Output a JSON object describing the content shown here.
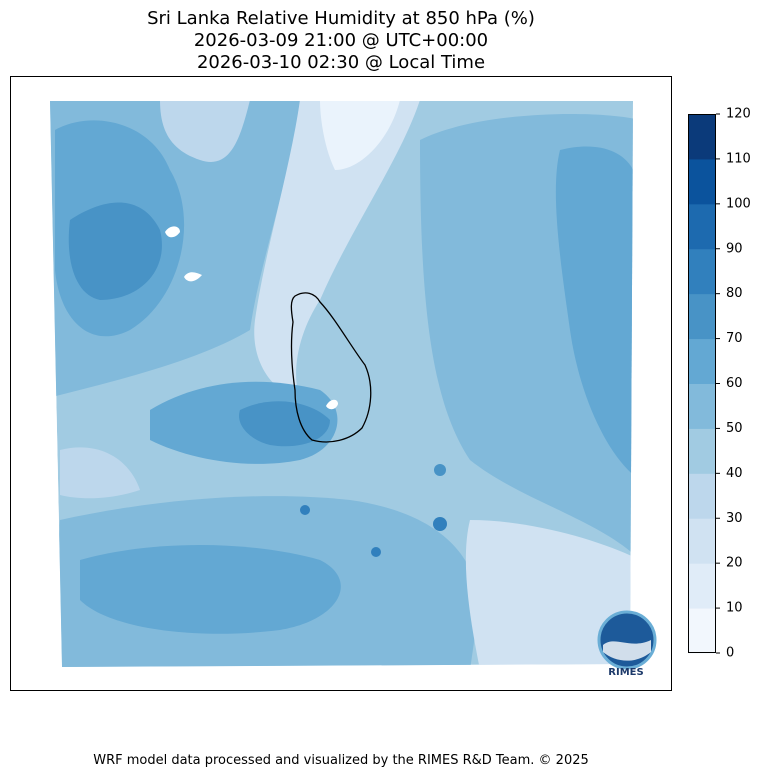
{
  "title": [
    "Sri Lanka Relative Humidity at 850 hPa (%)",
    "2026-03-09 21:00 @ UTC+00:00",
    "2026-03-10 02:30 @ Local Time"
  ],
  "colorbar": {
    "ticks": [
      0,
      10,
      20,
      30,
      40,
      50,
      60,
      70,
      80,
      90,
      100,
      110,
      120
    ],
    "colors": [
      "#f2f7fd",
      "#e0ecf8",
      "#d0e2f2",
      "#bdd7ec",
      "#a1cbe2",
      "#82badb",
      "#63a8d3",
      "#4893c6",
      "#3180bd",
      "#1d6aaf",
      "#0b539d",
      "#0b3a7a"
    ]
  },
  "footer": "WRF model data processed and visualized by the RIMES R&D Team. © 2025",
  "logo": "RIMES"
}
